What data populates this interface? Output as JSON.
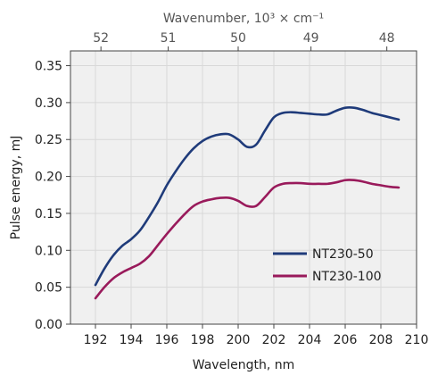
{
  "chart_data": {
    "type": "line",
    "xlabel": "Wavelength, nm",
    "ylabel": "Pulse energy, mJ",
    "top_xlabel": "Wavenumber, 10³ × cm⁻¹",
    "xlim": [
      190.6,
      210
    ],
    "ylim": [
      0,
      0.37
    ],
    "x_ticks": [
      192,
      194,
      196,
      198,
      200,
      202,
      204,
      206,
      208,
      210
    ],
    "y_ticks": [
      0.0,
      0.05,
      0.1,
      0.15,
      0.2,
      0.25,
      0.3,
      0.35
    ],
    "y_tick_labels": [
      "0.00",
      "0.05",
      "0.10",
      "0.15",
      "0.20",
      "0.25",
      "0.30",
      "0.35"
    ],
    "top_ticks": [
      52,
      51,
      50,
      49,
      48
    ],
    "grid": true,
    "legend_position": "lower-right",
    "colors": {
      "background": "#f0f0f0",
      "grid": "#d8d8d8",
      "axis": "#444444"
    },
    "series": [
      {
        "name": "NT230-50",
        "color": "#1f3b7a",
        "x": [
          192,
          192.5,
          193,
          193.5,
          194,
          194.5,
          195,
          195.5,
          196,
          196.5,
          197,
          197.5,
          198,
          198.5,
          199,
          199.5,
          200,
          200.5,
          201,
          201.5,
          202,
          202.5,
          203,
          203.5,
          204,
          204.5,
          205,
          205.5,
          206,
          206.5,
          207,
          207.5,
          208,
          208.5,
          209
        ],
        "y": [
          0.053,
          0.075,
          0.093,
          0.106,
          0.115,
          0.127,
          0.145,
          0.165,
          0.188,
          0.207,
          0.224,
          0.238,
          0.248,
          0.254,
          0.257,
          0.257,
          0.25,
          0.24,
          0.243,
          0.262,
          0.28,
          0.286,
          0.287,
          0.286,
          0.285,
          0.284,
          0.284,
          0.289,
          0.293,
          0.293,
          0.29,
          0.286,
          0.283,
          0.28,
          0.277
        ]
      },
      {
        "name": "NT230-100",
        "color": "#991a5b",
        "x": [
          192,
          192.5,
          193,
          193.5,
          194,
          194.5,
          195,
          195.5,
          196,
          196.5,
          197,
          197.5,
          198,
          198.5,
          199,
          199.5,
          200,
          200.5,
          201,
          201.5,
          202,
          202.5,
          203,
          203.5,
          204,
          204.5,
          205,
          205.5,
          206,
          206.5,
          207,
          207.5,
          208,
          208.5,
          209
        ],
        "y": [
          0.035,
          0.05,
          0.062,
          0.07,
          0.076,
          0.082,
          0.092,
          0.107,
          0.122,
          0.136,
          0.149,
          0.16,
          0.166,
          0.169,
          0.171,
          0.171,
          0.167,
          0.16,
          0.16,
          0.172,
          0.185,
          0.19,
          0.191,
          0.191,
          0.19,
          0.19,
          0.19,
          0.192,
          0.195,
          0.195,
          0.193,
          0.19,
          0.188,
          0.186,
          0.185
        ]
      }
    ]
  }
}
